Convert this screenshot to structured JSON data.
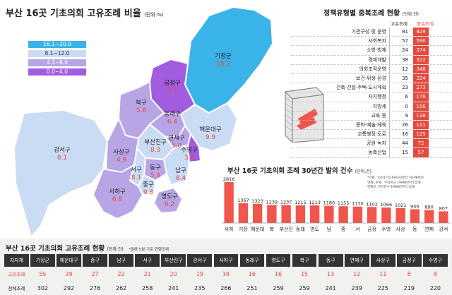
{
  "chart_data": [
    {
      "type": "map",
      "title": "부산 16곳 기초의회 고유조례 비율",
      "unit_note": "(단위:%)",
      "legend": [
        {
          "range": "16.1~20.0",
          "color": "#3ab4e8"
        },
        {
          "range": "8.1~12.0",
          "color": "#c9dcf4"
        },
        {
          "range": "4.1~8.0",
          "color": "#b7a5e6"
        },
        {
          "range": "0.0~4.0",
          "color": "#a15ce0"
        }
      ],
      "regions": [
        {
          "name": "기장군",
          "value": "18.2"
        },
        {
          "name": "금정구",
          "value": "3.7"
        },
        {
          "name": "북구",
          "value": "5.8"
        },
        {
          "name": "동래구",
          "value": "6.4"
        },
        {
          "name": "해운대구",
          "value": "9.9"
        },
        {
          "name": "연제구",
          "value": "5.0"
        },
        {
          "name": "수영구",
          "value": "3.6"
        },
        {
          "name": "부산진구",
          "value": "8.3"
        },
        {
          "name": "강서구",
          "value": "8.1"
        },
        {
          "name": "사상구",
          "value": "4.9"
        },
        {
          "name": "동구",
          "value": "5.4"
        },
        {
          "name": "남구",
          "value": "8.4"
        },
        {
          "name": "서구",
          "value": "8.1"
        },
        {
          "name": "중구",
          "value": "9.8"
        },
        {
          "name": "영도구",
          "value": "6.2"
        },
        {
          "name": "사하구",
          "value": "6.8"
        }
      ]
    },
    {
      "type": "table",
      "title": "정책유형별 중복조례 현황",
      "unit_note": "(단위:건)",
      "columns": [
        "고유조례",
        "중복조례"
      ],
      "rows": [
        {
          "name": "기관구성 및 운영",
          "own": 81,
          "dup": 929
        },
        {
          "name": "사회복지",
          "own": 57,
          "dup": 590
        },
        {
          "name": "소방·방재",
          "own": 24,
          "dup": 374
        },
        {
          "name": "경제개발",
          "own": 38,
          "dup": 322
        },
        {
          "name": "의회조직운영",
          "own": 12,
          "dup": 348
        },
        {
          "name": "보건·위생·환경",
          "own": 35,
          "dup": 324
        },
        {
          "name": "건축·건설·주택·도시계획",
          "own": 23,
          "dup": 273
        },
        {
          "name": "자치행정",
          "own": 6,
          "dup": 178
        },
        {
          "name": "지방세",
          "own": 0,
          "dup": 156
        },
        {
          "name": "교육 등",
          "own": 9,
          "dup": 138
        },
        {
          "name": "문화·예술·체육",
          "own": 26,
          "dup": 121
        },
        {
          "name": "교통행정·도로",
          "own": 16,
          "dup": 125
        },
        {
          "name": "공원·녹지",
          "own": 44,
          "dup": 72
        },
        {
          "name": "농축산업",
          "own": 15,
          "dup": 57
        }
      ]
    },
    {
      "type": "bar",
      "title": "부산 16곳 기초의회 조례 30년간 발의 건수",
      "unit_note": "(단위:건)",
      "note_lines": [
        "*기준 : 민선1기(1991년)부터 지난해까지",
        "연제-,수영-, 부산진구 1999년부터 집계",
        "연제구, 부산진구 1998년부터 집계"
      ],
      "categories": [
        "사하",
        "기장",
        "해운대",
        "북",
        "부산진",
        "동래",
        "영도",
        "남",
        "중",
        "서",
        "금정",
        "수영",
        "사상",
        "동",
        "연제",
        "강서"
      ],
      "values": [
        2816,
        1367,
        1323,
        1239,
        1237,
        1215,
        1213,
        1180,
        1155,
        1130,
        1102,
        1066,
        1021,
        946,
        890,
        807
      ],
      "bar_color": "#f0564b"
    },
    {
      "type": "table",
      "title": "부산 16곳 기초의회 고유조례 현황",
      "unit_note": "(단위:건)",
      "note": "*올해 5월 기준 현행조례",
      "header_label": "지자체",
      "row_labels": [
        "고유조례",
        "전체조례"
      ],
      "columns": [
        "기장군",
        "해운대구",
        "중구",
        "남구",
        "서구",
        "부산진구",
        "강서구",
        "사하구",
        "동래구",
        "영도구",
        "북구",
        "동구",
        "연제구",
        "사상구",
        "금정구",
        "수영구"
      ],
      "own": [
        55,
        29,
        27,
        22,
        21,
        20,
        19,
        18,
        16,
        16,
        15,
        13,
        12,
        11,
        8,
        8
      ],
      "total": [
        302,
        292,
        276,
        262,
        258,
        241,
        235,
        266,
        251,
        259,
        259,
        241,
        239,
        225,
        219,
        220
      ]
    }
  ]
}
